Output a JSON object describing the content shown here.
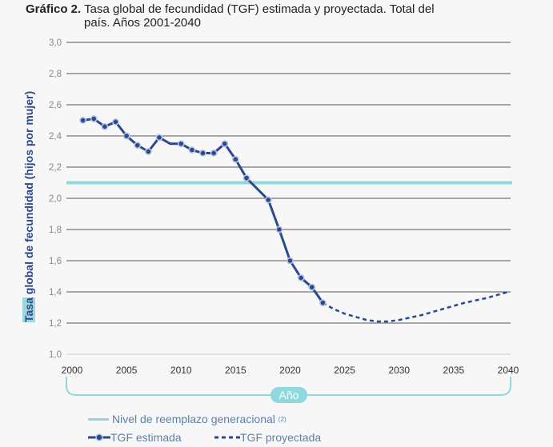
{
  "title_bold": "Gráfico 2.",
  "title_line1": "Tasa global de fecundidad (TGF) estimada y proyectada. Total del",
  "title_line2": "país. Años 2001-2040",
  "colors": {
    "estimated": "#2b4a8c",
    "projected": "#2b4a8c",
    "replacement": "#8fd8dd",
    "marker_halo": "#b9c3e3"
  },
  "chart_data": {
    "type": "line",
    "title": "Tasa global de fecundidad (TGF) estimada y proyectada. Total del país. Años 2001-2040",
    "xlabel": "Año",
    "ylabel_highlight": "Tasa",
    "ylabel_rest": " global de fecundidad (hijos por mujer)",
    "ylabel": "Tasa global de fecundidad (hijos por mujer)",
    "xlim": [
      2000,
      2040
    ],
    "ylim": [
      1.0,
      3.0
    ],
    "xticks": [
      "2000",
      "2005",
      "2010",
      "2015",
      "2020",
      "2025",
      "2030",
      "2035",
      "2040"
    ],
    "yticks": [
      "1,0",
      "1,2",
      "1,4",
      "1,6",
      "1,8",
      "2,0",
      "2,2",
      "2,4",
      "2,6",
      "2,8",
      "3,0"
    ],
    "grid": true,
    "legend_placement": "bottom-left",
    "replacement_level": {
      "name": "Nivel de reemplazo generacional",
      "note": "(2)",
      "value": 2.1
    },
    "series": [
      {
        "name": "TGF estimada",
        "style": "solid-markers",
        "x": [
          2001,
          2002,
          2003,
          2004,
          2005,
          2006,
          2007,
          2008,
          2009,
          2010,
          2011,
          2012,
          2013,
          2014,
          2015,
          2016,
          2017,
          2018,
          2019,
          2020,
          2021,
          2022,
          2023
        ],
        "y": [
          2.5,
          2.51,
          2.46,
          2.49,
          2.4,
          2.34,
          2.3,
          2.39,
          2.35,
          2.35,
          2.31,
          2.29,
          2.29,
          2.35,
          2.25,
          2.13,
          2.06,
          1.99,
          1.8,
          1.6,
          1.49,
          1.43,
          1.33
        ],
        "markers": [
          2001,
          2002,
          2003,
          2004,
          2005,
          2006,
          2007,
          2008,
          2010,
          2011,
          2012,
          2013,
          2014,
          2015,
          2016,
          2018,
          2019,
          2020,
          2021,
          2022,
          2023
        ]
      },
      {
        "name": "TGF proyectada",
        "style": "dashed",
        "x": [
          2023,
          2024,
          2025,
          2026,
          2027,
          2028,
          2029,
          2030,
          2032,
          2034,
          2036,
          2038,
          2040
        ],
        "y": [
          1.33,
          1.29,
          1.26,
          1.24,
          1.22,
          1.21,
          1.21,
          1.22,
          1.25,
          1.29,
          1.33,
          1.36,
          1.4
        ]
      }
    ]
  }
}
